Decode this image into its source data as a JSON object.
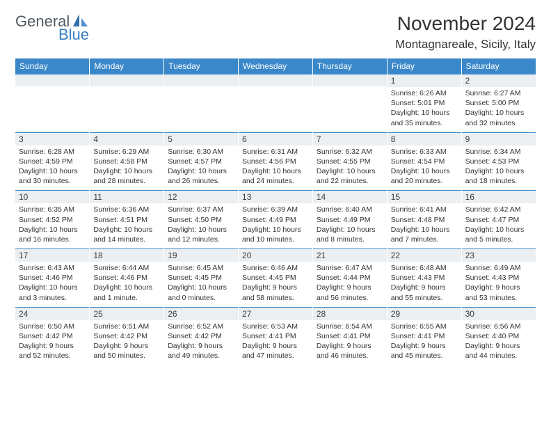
{
  "logo": {
    "text1": "General",
    "text2": "Blue"
  },
  "title": "November 2024",
  "location": "Montagnareale, Sicily, Italy",
  "colors": {
    "header_bg": "#3a88c9",
    "header_text": "#ffffff",
    "daynum_bg": "#eceff1",
    "border": "#3a88c9",
    "logo_gray": "#505a62",
    "logo_blue": "#3a7fc2"
  },
  "font": {
    "family": "Arial",
    "title_size": 28,
    "location_size": 17,
    "header_size": 12,
    "daynum_size": 12,
    "body_size": 10.5
  },
  "weekdays": [
    "Sunday",
    "Monday",
    "Tuesday",
    "Wednesday",
    "Thursday",
    "Friday",
    "Saturday"
  ],
  "weeks": [
    [
      null,
      null,
      null,
      null,
      null,
      {
        "n": "1",
        "sunrise": "6:26 AM",
        "sunset": "5:01 PM",
        "daylight": "10 hours and 35 minutes."
      },
      {
        "n": "2",
        "sunrise": "6:27 AM",
        "sunset": "5:00 PM",
        "daylight": "10 hours and 32 minutes."
      }
    ],
    [
      {
        "n": "3",
        "sunrise": "6:28 AM",
        "sunset": "4:59 PM",
        "daylight": "10 hours and 30 minutes."
      },
      {
        "n": "4",
        "sunrise": "6:29 AM",
        "sunset": "4:58 PM",
        "daylight": "10 hours and 28 minutes."
      },
      {
        "n": "5",
        "sunrise": "6:30 AM",
        "sunset": "4:57 PM",
        "daylight": "10 hours and 26 minutes."
      },
      {
        "n": "6",
        "sunrise": "6:31 AM",
        "sunset": "4:56 PM",
        "daylight": "10 hours and 24 minutes."
      },
      {
        "n": "7",
        "sunrise": "6:32 AM",
        "sunset": "4:55 PM",
        "daylight": "10 hours and 22 minutes."
      },
      {
        "n": "8",
        "sunrise": "6:33 AM",
        "sunset": "4:54 PM",
        "daylight": "10 hours and 20 minutes."
      },
      {
        "n": "9",
        "sunrise": "6:34 AM",
        "sunset": "4:53 PM",
        "daylight": "10 hours and 18 minutes."
      }
    ],
    [
      {
        "n": "10",
        "sunrise": "6:35 AM",
        "sunset": "4:52 PM",
        "daylight": "10 hours and 16 minutes."
      },
      {
        "n": "11",
        "sunrise": "6:36 AM",
        "sunset": "4:51 PM",
        "daylight": "10 hours and 14 minutes."
      },
      {
        "n": "12",
        "sunrise": "6:37 AM",
        "sunset": "4:50 PM",
        "daylight": "10 hours and 12 minutes."
      },
      {
        "n": "13",
        "sunrise": "6:39 AM",
        "sunset": "4:49 PM",
        "daylight": "10 hours and 10 minutes."
      },
      {
        "n": "14",
        "sunrise": "6:40 AM",
        "sunset": "4:49 PM",
        "daylight": "10 hours and 8 minutes."
      },
      {
        "n": "15",
        "sunrise": "6:41 AM",
        "sunset": "4:48 PM",
        "daylight": "10 hours and 7 minutes."
      },
      {
        "n": "16",
        "sunrise": "6:42 AM",
        "sunset": "4:47 PM",
        "daylight": "10 hours and 5 minutes."
      }
    ],
    [
      {
        "n": "17",
        "sunrise": "6:43 AM",
        "sunset": "4:46 PM",
        "daylight": "10 hours and 3 minutes."
      },
      {
        "n": "18",
        "sunrise": "6:44 AM",
        "sunset": "4:46 PM",
        "daylight": "10 hours and 1 minute."
      },
      {
        "n": "19",
        "sunrise": "6:45 AM",
        "sunset": "4:45 PM",
        "daylight": "10 hours and 0 minutes."
      },
      {
        "n": "20",
        "sunrise": "6:46 AM",
        "sunset": "4:45 PM",
        "daylight": "9 hours and 58 minutes."
      },
      {
        "n": "21",
        "sunrise": "6:47 AM",
        "sunset": "4:44 PM",
        "daylight": "9 hours and 56 minutes."
      },
      {
        "n": "22",
        "sunrise": "6:48 AM",
        "sunset": "4:43 PM",
        "daylight": "9 hours and 55 minutes."
      },
      {
        "n": "23",
        "sunrise": "6:49 AM",
        "sunset": "4:43 PM",
        "daylight": "9 hours and 53 minutes."
      }
    ],
    [
      {
        "n": "24",
        "sunrise": "6:50 AM",
        "sunset": "4:42 PM",
        "daylight": "9 hours and 52 minutes."
      },
      {
        "n": "25",
        "sunrise": "6:51 AM",
        "sunset": "4:42 PM",
        "daylight": "9 hours and 50 minutes."
      },
      {
        "n": "26",
        "sunrise": "6:52 AM",
        "sunset": "4:42 PM",
        "daylight": "9 hours and 49 minutes."
      },
      {
        "n": "27",
        "sunrise": "6:53 AM",
        "sunset": "4:41 PM",
        "daylight": "9 hours and 47 minutes."
      },
      {
        "n": "28",
        "sunrise": "6:54 AM",
        "sunset": "4:41 PM",
        "daylight": "9 hours and 46 minutes."
      },
      {
        "n": "29",
        "sunrise": "6:55 AM",
        "sunset": "4:41 PM",
        "daylight": "9 hours and 45 minutes."
      },
      {
        "n": "30",
        "sunrise": "6:56 AM",
        "sunset": "4:40 PM",
        "daylight": "9 hours and 44 minutes."
      }
    ]
  ],
  "labels": {
    "sunrise": "Sunrise: ",
    "sunset": "Sunset: ",
    "daylight": "Daylight: "
  }
}
